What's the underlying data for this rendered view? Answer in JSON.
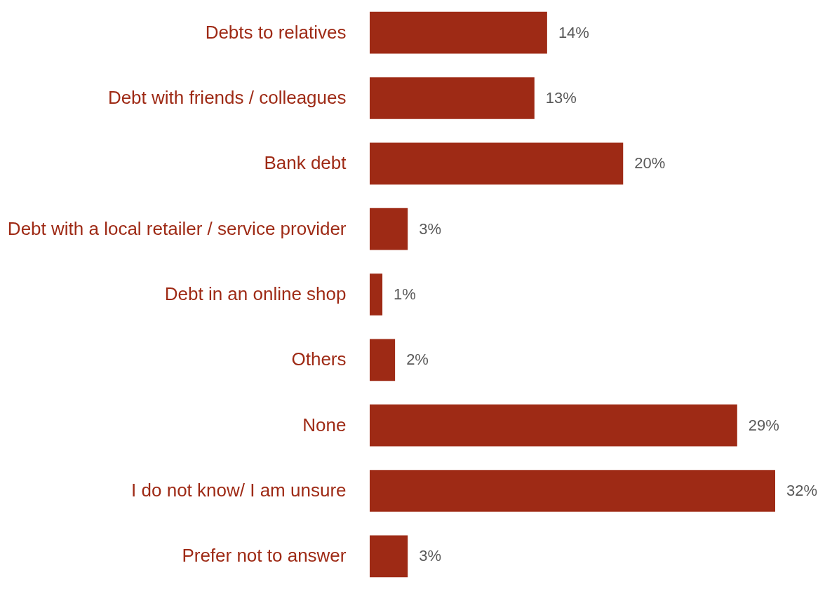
{
  "chart_data": {
    "type": "bar",
    "orientation": "horizontal",
    "categories": [
      "Debts to relatives",
      "Debt with friends / colleagues",
      "Bank debt",
      "Debt with a local retailer / service provider",
      "Debt in an online shop",
      "Others",
      "None",
      "I do not know/ I am unsure",
      "Prefer not to answer"
    ],
    "values": [
      14,
      13,
      20,
      3,
      1,
      2,
      29,
      32,
      3
    ],
    "value_labels": [
      "14%",
      "13%",
      "20%",
      "3%",
      "1%",
      "2%",
      "29%",
      "32%",
      "3%"
    ],
    "color": "#9e2a15"
  }
}
